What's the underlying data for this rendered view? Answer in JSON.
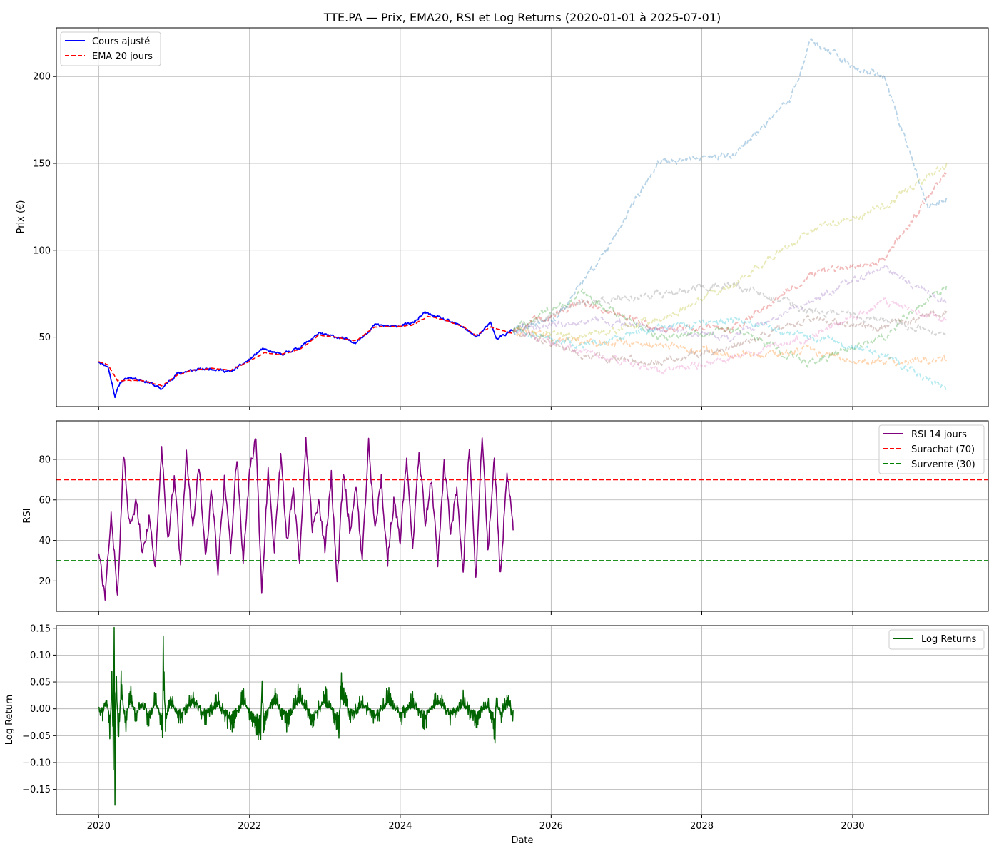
{
  "chart_data": [
    {
      "type": "line",
      "title": "TTE.PA — Prix, EMA20, RSI et Log Returns (2020-01-01 à 2025-07-01)",
      "ylabel": "Prix (€)",
      "xlim": [
        "2019-06-10",
        "2031-10-20"
      ],
      "ylim": [
        10,
        228
      ],
      "yticks": [
        50,
        100,
        150,
        200
      ],
      "grid": true,
      "legend": "top-left",
      "legend_entries": [
        "Cours ajusté",
        "EMA 20 jours"
      ],
      "colors": {
        "price": "#0000ff",
        "ema": "#ff0000"
      },
      "series": [
        {
          "name": "Cours ajusté",
          "x": [
            "2020-01-01",
            "2020-02-15",
            "2020-03-20",
            "2020-04-15",
            "2020-06-01",
            "2020-09-01",
            "2020-10-30",
            "2021-01-15",
            "2021-04-01",
            "2021-07-01",
            "2021-10-01",
            "2022-01-01",
            "2022-03-01",
            "2022-06-01",
            "2022-09-01",
            "2022-12-01",
            "2023-03-01",
            "2023-06-01",
            "2023-09-01",
            "2023-12-01",
            "2024-03-01",
            "2024-05-01",
            "2024-08-01",
            "2024-11-01",
            "2025-01-01",
            "2025-03-15",
            "2025-04-10",
            "2025-07-01"
          ],
          "values": [
            36,
            33,
            16,
            24,
            27,
            24,
            20,
            29,
            31,
            32,
            30,
            37,
            43,
            40,
            44,
            52,
            50,
            47,
            57,
            56,
            58,
            64,
            60,
            56,
            50,
            58,
            49,
            54
          ]
        },
        {
          "name": "EMA 20 jours",
          "x": [
            "2020-01-01",
            "2020-02-15",
            "2020-04-01",
            "2020-05-15",
            "2020-08-01",
            "2020-11-01",
            "2021-01-15",
            "2021-04-01",
            "2021-07-01",
            "2021-10-01",
            "2022-01-01",
            "2022-03-15",
            "2022-06-01",
            "2022-09-01",
            "2022-12-01",
            "2023-03-01",
            "2023-06-01",
            "2023-09-01",
            "2023-12-01",
            "2024-03-01",
            "2024-05-15",
            "2024-08-01",
            "2024-11-01",
            "2025-01-01",
            "2025-03-15",
            "2025-07-01"
          ],
          "values": [
            36,
            34,
            25,
            25,
            25,
            22,
            28,
            31,
            32,
            31,
            36,
            41,
            40,
            43,
            51,
            50,
            48,
            56,
            56,
            57,
            62,
            60,
            56,
            51,
            56,
            52
          ]
        },
        {
          "x": [
            "2025-07-01",
            "2026-02-01",
            "2026-10-01",
            "2027-06-01",
            "2028-06-01",
            "2029-03-01",
            "2029-06-15",
            "2030-01-01",
            "2030-06-01",
            "2031-01-01",
            "2031-04-01"
          ],
          "values": [
            54,
            62,
            100,
            150,
            155,
            185,
            220,
            205,
            200,
            125,
            130
          ]
        },
        {
          "x": [
            "2025-07-01",
            "2026-06-01",
            "2027-06-01",
            "2028-06-01",
            "2029-06-01",
            "2030-06-01",
            "2031-04-01"
          ],
          "values": [
            54,
            48,
            45,
            40,
            42,
            35,
            37
          ]
        },
        {
          "x": [
            "2025-07-01",
            "2026-06-01",
            "2027-06-01",
            "2028-06-01",
            "2029-06-01",
            "2030-06-01",
            "2031-04-01"
          ],
          "values": [
            54,
            75,
            50,
            55,
            35,
            50,
            80
          ]
        },
        {
          "x": [
            "2025-07-01",
            "2026-06-01",
            "2027-06-01",
            "2028-06-01",
            "2029-06-01",
            "2030-06-01",
            "2031-04-01"
          ],
          "values": [
            54,
            70,
            55,
            55,
            85,
            95,
            145
          ]
        },
        {
          "x": [
            "2025-07-01",
            "2026-06-01",
            "2027-06-01",
            "2028-06-01",
            "2029-06-01",
            "2030-06-01",
            "2031-04-01"
          ],
          "values": [
            54,
            60,
            55,
            50,
            70,
            90,
            70
          ]
        },
        {
          "x": [
            "2025-07-01",
            "2026-06-01",
            "2027-06-01",
            "2028-06-01",
            "2029-06-01",
            "2030-06-01",
            "2031-04-01"
          ],
          "values": [
            54,
            40,
            35,
            45,
            60,
            55,
            65
          ]
        },
        {
          "x": [
            "2025-07-01",
            "2026-06-01",
            "2027-06-01",
            "2028-06-01",
            "2029-06-01",
            "2030-06-01",
            "2031-04-01"
          ],
          "values": [
            54,
            42,
            30,
            38,
            50,
            70,
            60
          ]
        },
        {
          "x": [
            "2025-07-01",
            "2026-06-01",
            "2027-06-01",
            "2028-06-01",
            "2029-06-01",
            "2030-06-01",
            "2031-04-01"
          ],
          "values": [
            54,
            70,
            75,
            80,
            65,
            60,
            50
          ]
        },
        {
          "x": [
            "2025-07-01",
            "2026-06-01",
            "2027-06-01",
            "2028-06-01",
            "2029-06-01",
            "2030-06-01",
            "2031-04-01"
          ],
          "values": [
            54,
            50,
            60,
            80,
            110,
            125,
            150
          ]
        },
        {
          "x": [
            "2025-07-01",
            "2026-06-01",
            "2027-06-01",
            "2028-06-01",
            "2029-06-01",
            "2030-06-01",
            "2031-04-01"
          ],
          "values": [
            54,
            45,
            55,
            60,
            50,
            40,
            20
          ]
        }
      ]
    },
    {
      "type": "line",
      "ylabel": "RSI",
      "xlim": [
        "2019-06-10",
        "2031-10-20"
      ],
      "ylim": [
        5,
        99
      ],
      "yticks": [
        20,
        40,
        60,
        80
      ],
      "grid": true,
      "legend": "top-right",
      "legend_entries": [
        "RSI 14 jours",
        "Surachat (70)",
        "Survente (30)"
      ],
      "hlines": [
        {
          "name": "Surachat (70)",
          "y": 70,
          "color": "#ff0000"
        },
        {
          "name": "Survente (30)",
          "y": 30,
          "color": "#008000"
        }
      ],
      "colors": {
        "rsi": "#800080"
      },
      "series": [
        {
          "name": "RSI 14 jours",
          "x": [
            "2020-01-01",
            "2020-02-01",
            "2020-03-01",
            "2020-04-01",
            "2020-05-01",
            "2020-06-01",
            "2020-07-01",
            "2020-08-01",
            "2020-09-01",
            "2020-10-01",
            "2020-11-01",
            "2020-12-01",
            "2021-01-01",
            "2021-02-01",
            "2021-03-01",
            "2021-04-01",
            "2021-05-01",
            "2021-06-01",
            "2021-07-01",
            "2021-08-01",
            "2021-09-01",
            "2021-10-01",
            "2021-11-01",
            "2021-12-01",
            "2022-01-01",
            "2022-02-01",
            "2022-03-01",
            "2022-04-01",
            "2022-05-01",
            "2022-06-01",
            "2022-07-01",
            "2022-08-01",
            "2022-09-01",
            "2022-10-01",
            "2022-11-01",
            "2022-12-01",
            "2023-01-01",
            "2023-02-01",
            "2023-03-01",
            "2023-04-01",
            "2023-05-01",
            "2023-06-01",
            "2023-07-01",
            "2023-08-01",
            "2023-09-01",
            "2023-10-01",
            "2023-11-01",
            "2023-12-01",
            "2024-01-01",
            "2024-02-01",
            "2024-03-01",
            "2024-04-01",
            "2024-05-01",
            "2024-06-01",
            "2024-07-01",
            "2024-08-01",
            "2024-09-01",
            "2024-10-01",
            "2024-11-01",
            "2024-12-01",
            "2025-01-01",
            "2025-02-01",
            "2025-03-01",
            "2025-04-01",
            "2025-05-01",
            "2025-06-01",
            "2025-07-01"
          ],
          "values": [
            35,
            10,
            55,
            12,
            82,
            45,
            60,
            35,
            50,
            28,
            88,
            40,
            70,
            30,
            82,
            45,
            78,
            30,
            65,
            25,
            70,
            35,
            82,
            28,
            75,
            90,
            13,
            75,
            35,
            82,
            40,
            65,
            30,
            88,
            45,
            60,
            35,
            72,
            18,
            75,
            45,
            65,
            30,
            88,
            45,
            70,
            30,
            60,
            40,
            80,
            35,
            85,
            50,
            70,
            30,
            78,
            45,
            65,
            25,
            88,
            20,
            92,
            35,
            80,
            22,
            75,
            45
          ]
        }
      ]
    },
    {
      "type": "line",
      "xlabel": "Date",
      "ylabel": "Log Return",
      "xlim": [
        "2019-06-10",
        "2031-10-20"
      ],
      "ylim": [
        -0.197,
        0.155
      ],
      "yticks": [
        0.15,
        0.1,
        0.05,
        0.0,
        -0.05,
        -0.1,
        -0.15
      ],
      "ytick_labels": [
        "0.15",
        "0.10",
        "0.05",
        "0.00",
        "−0.05",
        "−0.10",
        "−0.15"
      ],
      "xticks": [
        "2020-01-01",
        "2022-01-01",
        "2024-01-01",
        "2026-01-01",
        "2028-01-01",
        "2030-01-01"
      ],
      "xtick_labels": [
        "2020",
        "2022",
        "2024",
        "2026",
        "2028",
        "2030"
      ],
      "grid": true,
      "legend": "top-right",
      "legend_entries": [
        "Log Returns"
      ],
      "colors": {
        "returns": "#006400"
      },
      "series": [
        {
          "name": "Log Returns",
          "x": [
            "2020-01-01",
            "2020-01-20",
            "2020-02-10",
            "2020-02-25",
            "2020-03-05",
            "2020-03-12",
            "2020-03-16",
            "2020-03-20",
            "2020-03-25",
            "2020-04-05",
            "2020-04-20",
            "2020-05-10",
            "2020-06-01",
            "2020-07-01",
            "2020-08-01",
            "2020-09-01",
            "2020-10-01",
            "2020-11-05",
            "2020-11-09",
            "2020-11-20",
            "2020-12-15",
            "2021-02-01",
            "2021-04-01",
            "2021-06-01",
            "2021-08-01",
            "2021-10-01",
            "2021-12-01",
            "2022-01-15",
            "2022-02-25",
            "2022-03-01",
            "2022-03-10",
            "2022-05-01",
            "2022-07-01",
            "2022-09-01",
            "2022-11-01",
            "2023-01-01",
            "2023-03-10",
            "2023-03-20",
            "2023-05-01",
            "2023-07-01",
            "2023-09-01",
            "2023-11-01",
            "2024-01-01",
            "2024-03-01",
            "2024-05-01",
            "2024-07-01",
            "2024-09-01",
            "2024-11-01",
            "2025-01-01",
            "2025-03-01",
            "2025-04-04",
            "2025-04-09",
            "2025-05-01",
            "2025-06-01",
            "2025-07-01"
          ],
          "values": [
            0.01,
            -0.01,
            0.02,
            -0.05,
            0.08,
            -0.12,
            0.14,
            -0.18,
            0.1,
            -0.07,
            0.07,
            -0.04,
            0.04,
            -0.02,
            0.02,
            -0.03,
            0.03,
            -0.04,
            0.14,
            -0.03,
            0.02,
            -0.02,
            0.03,
            -0.02,
            0.02,
            -0.04,
            0.03,
            -0.03,
            -0.06,
            0.08,
            -0.04,
            0.03,
            -0.03,
            0.04,
            -0.03,
            0.03,
            -0.04,
            0.06,
            -0.02,
            0.02,
            -0.03,
            0.03,
            -0.02,
            0.02,
            -0.03,
            0.03,
            -0.02,
            0.02,
            -0.03,
            0.02,
            -0.06,
            0.03,
            -0.02,
            0.02,
            -0.01
          ]
        }
      ]
    }
  ]
}
